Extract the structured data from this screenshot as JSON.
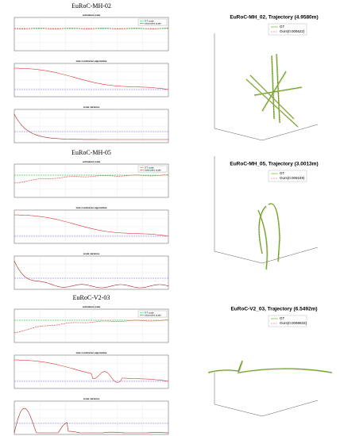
{
  "sections": [
    {
      "title": "EuRoC-MH-02",
      "panels": [
        "estimated scale",
        "max covariance eigenvalue",
        "scale variance"
      ],
      "legend": [
        "GT scale",
        "estimated scale"
      ],
      "trajectory": {
        "title": "EuRoC-MH_02, Trajectory (4.9580m)",
        "legend": [
          "GT",
          "Ours(0.005622)"
        ]
      }
    },
    {
      "title": "EuRoC-MH-05",
      "panels": [
        "estimated scale",
        "max covariance eigenvalue",
        "scale variance"
      ],
      "legend": [
        "GT scale",
        "estimated scale"
      ],
      "trajectory": {
        "title": "EuRoC-MH_05, Trajectory (3.0013m)",
        "legend": [
          "GT",
          "Ours(0.009249)"
        ]
      }
    },
    {
      "title": "EuRoC-V2-03",
      "panels": [
        "estimated scale",
        "max covariance eigenvalue",
        "scale variance"
      ],
      "legend": [
        "GT scale",
        "estimated scale"
      ],
      "trajectory": {
        "title": "EuRoC-V2_03, Trajectory (6.5492m)",
        "legend": [
          "GT",
          "Ours(0.0099833)"
        ]
      }
    }
  ]
}
